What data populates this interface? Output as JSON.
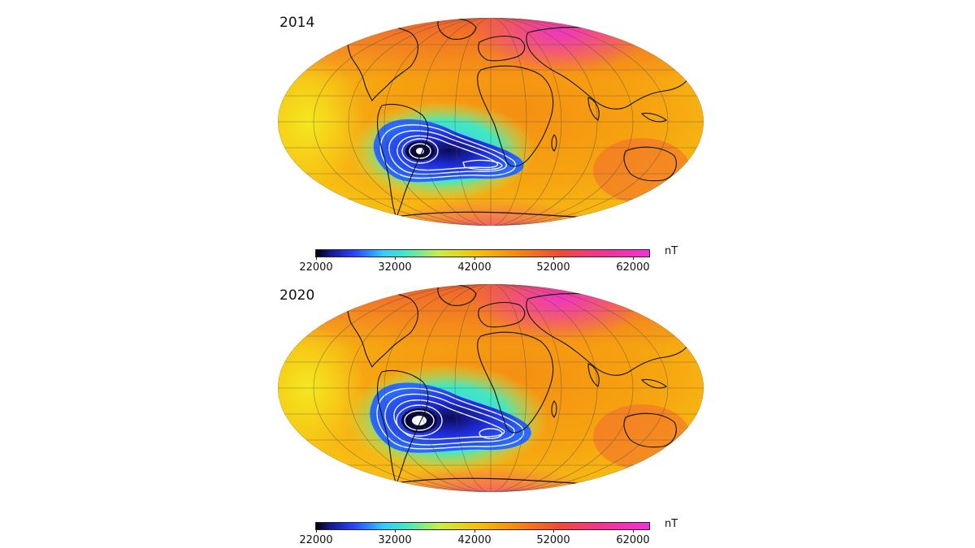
{
  "panels": [
    {
      "year": "2014",
      "colorbar": {
        "ticks": [
          "22000",
          "32000",
          "42000",
          "52000",
          "62000"
        ],
        "unit": "nT"
      }
    },
    {
      "year": "2020",
      "colorbar": {
        "ticks": [
          "22000",
          "32000",
          "42000",
          "52000",
          "62000"
        ],
        "unit": "nT"
      }
    }
  ],
  "colors": {
    "min": "#000000",
    "low": "#2a4bff",
    "mid_low": "#36c9ff",
    "mid": "#f4c20a",
    "high": "#ee4c35",
    "max": "#f033d8"
  },
  "scale": {
    "min": 22000,
    "max": 64000,
    "unit": "nT"
  }
}
